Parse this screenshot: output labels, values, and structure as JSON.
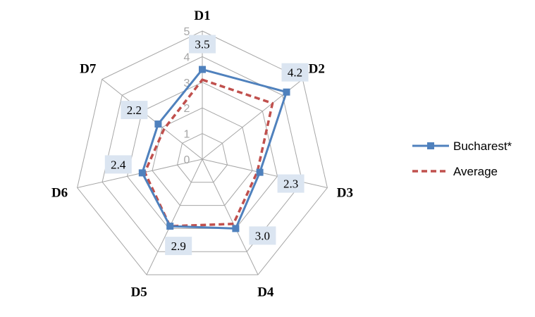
{
  "chart_data": {
    "type": "radar",
    "categories": [
      "D1",
      "D2",
      "D3",
      "D4",
      "D5",
      "D6",
      "D7"
    ],
    "rlim": [
      0,
      5
    ],
    "ticks": [
      0,
      1,
      2,
      3,
      4,
      5
    ],
    "tick_labels": [
      "0",
      "1",
      "2",
      "3",
      "4",
      "5"
    ],
    "grid": true,
    "legend_position": "right",
    "series": [
      {
        "name": "Bucharest*",
        "values": [
          3.5,
          4.2,
          2.3,
          3.0,
          2.9,
          2.4,
          2.2
        ],
        "data_labels": [
          "3.5",
          "4.2",
          "2.3",
          "3.0",
          "2.9",
          "2.4",
          "2.2"
        ],
        "color": "#4f81bd",
        "line_style": "solid",
        "marker": "square"
      },
      {
        "name": "Average",
        "values": [
          3.1,
          3.5,
          2.2,
          2.8,
          2.9,
          2.3,
          1.9
        ],
        "color": "#c0504d",
        "line_style": "dashed",
        "marker": "none"
      }
    ]
  }
}
